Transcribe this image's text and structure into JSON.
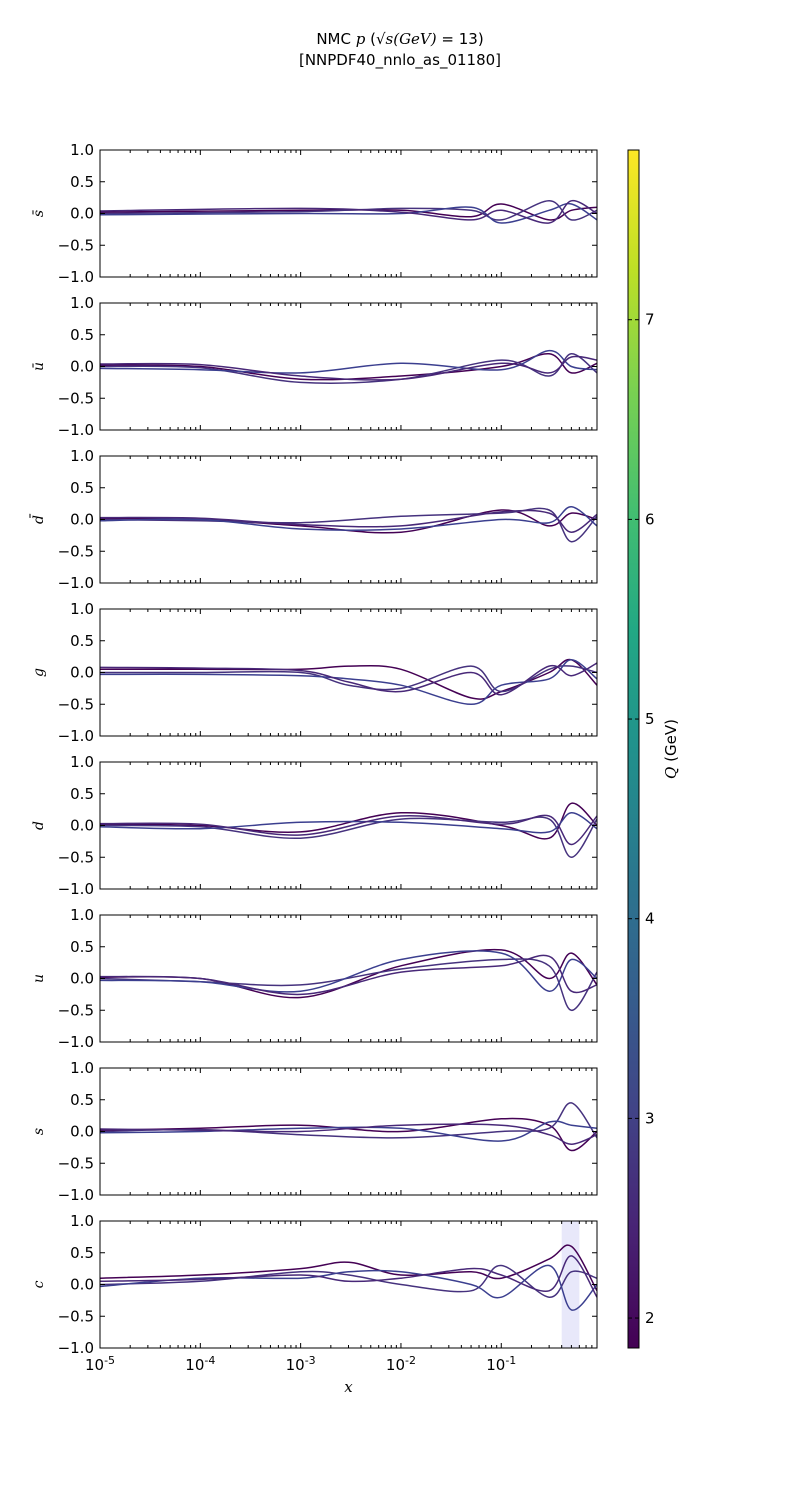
{
  "title": {
    "line1_pre": "NMC ",
    "line1_p": "p",
    "line1_paren": " (",
    "line1_sqrt": "√s",
    "line1_gev": "(GeV)",
    "line1_post": " = 13)",
    "line2": "[NNPDF40_nnlo_as_01180]"
  },
  "chart_data": {
    "type": "line",
    "xscale": "log",
    "xlim": [
      1e-05,
      0.9
    ],
    "ylim": [
      -1.0,
      1.0
    ],
    "xlabel": "x",
    "xticks": [
      "10",
      "10",
      "10",
      "10",
      "10"
    ],
    "xtick_exponents": [
      "-5",
      "-4",
      "-3",
      "-2",
      "-1"
    ],
    "yticks": [
      "1.0",
      "0.5",
      "0.0",
      "−0.5",
      "−1.0"
    ],
    "colorbar": {
      "label": "Q (GeV)",
      "range": [
        1.85,
        7.85
      ],
      "ticks": [
        "2",
        "3",
        "4",
        "5",
        "6",
        "7"
      ],
      "colormap": "viridis"
    },
    "line_colors": [
      "#440154",
      "#46327e",
      "#3b3f8f",
      "#482878",
      "#3e4a89",
      "#4b2a7f",
      "#2f3f8a",
      "#5a2b7a"
    ],
    "panels": [
      {
        "label": "s̄",
        "name": "sbar",
        "curves": [
          {
            "x": [
              1e-05,
              0.001,
              0.01,
              0.05,
              0.1,
              0.3,
              0.5,
              0.9
            ],
            "y": [
              0.02,
              0.05,
              0.05,
              -0.05,
              0.15,
              -0.1,
              0.05,
              0.1
            ]
          },
          {
            "x": [
              1e-05,
              0.001,
              0.01,
              0.05,
              0.1,
              0.3,
              0.5,
              0.9
            ],
            "y": [
              0.0,
              0.03,
              0.08,
              0.05,
              -0.1,
              0.2,
              -0.1,
              0.05
            ]
          },
          {
            "x": [
              1e-05,
              0.001,
              0.01,
              0.05,
              0.1,
              0.3,
              0.5,
              0.9
            ],
            "y": [
              -0.02,
              0.0,
              0.0,
              0.1,
              -0.15,
              0.05,
              0.15,
              -0.1
            ]
          },
          {
            "x": [
              1e-05,
              0.001,
              0.01,
              0.05,
              0.1,
              0.3,
              0.5,
              0.9
            ],
            "y": [
              0.04,
              0.08,
              0.02,
              -0.1,
              0.05,
              -0.15,
              0.2,
              0.0
            ]
          }
        ]
      },
      {
        "label": "ū",
        "name": "ubar",
        "curves": [
          {
            "x": [
              1e-05,
              0.0001,
              0.001,
              0.01,
              0.1,
              0.3,
              0.5,
              0.9
            ],
            "y": [
              0.02,
              0.0,
              -0.2,
              -0.15,
              0.0,
              0.2,
              -0.1,
              0.05
            ]
          },
          {
            "x": [
              1e-05,
              0.0001,
              0.001,
              0.01,
              0.1,
              0.3,
              0.5,
              0.9
            ],
            "y": [
              0.0,
              -0.02,
              -0.25,
              -0.2,
              0.1,
              -0.15,
              0.2,
              -0.1
            ]
          },
          {
            "x": [
              1e-05,
              0.0001,
              0.001,
              0.01,
              0.1,
              0.3,
              0.5,
              0.9
            ],
            "y": [
              -0.03,
              -0.05,
              -0.1,
              0.05,
              -0.05,
              0.25,
              0.0,
              -0.05
            ]
          },
          {
            "x": [
              1e-05,
              0.0001,
              0.001,
              0.01,
              0.1,
              0.3,
              0.5,
              0.9
            ],
            "y": [
              0.04,
              0.03,
              -0.15,
              -0.2,
              0.05,
              -0.1,
              0.15,
              0.1
            ]
          }
        ]
      },
      {
        "label": "d̄",
        "name": "dbar",
        "curves": [
          {
            "x": [
              1e-05,
              0.0001,
              0.001,
              0.01,
              0.1,
              0.3,
              0.5,
              0.9
            ],
            "y": [
              0.02,
              0.0,
              -0.1,
              -0.2,
              0.15,
              -0.1,
              0.1,
              0.0
            ]
          },
          {
            "x": [
              1e-05,
              0.0001,
              0.001,
              0.01,
              0.1,
              0.3,
              0.5,
              0.9
            ],
            "y": [
              0.0,
              -0.02,
              -0.05,
              0.05,
              0.1,
              0.15,
              -0.35,
              0.05
            ]
          },
          {
            "x": [
              1e-05,
              0.0001,
              0.001,
              0.01,
              0.1,
              0.3,
              0.5,
              0.9
            ],
            "y": [
              -0.02,
              0.0,
              -0.15,
              -0.15,
              0.0,
              -0.05,
              0.2,
              -0.1
            ]
          },
          {
            "x": [
              1e-05,
              0.0001,
              0.001,
              0.01,
              0.1,
              0.3,
              0.5,
              0.9
            ],
            "y": [
              0.03,
              0.02,
              -0.08,
              -0.1,
              0.12,
              0.1,
              -0.2,
              0.08
            ]
          }
        ]
      },
      {
        "label": "g",
        "name": "g",
        "curves": [
          {
            "x": [
              1e-05,
              0.0001,
              0.001,
              0.003,
              0.01,
              0.05,
              0.1,
              0.3,
              0.5,
              0.9
            ],
            "y": [
              0.05,
              0.05,
              0.05,
              0.1,
              0.05,
              -0.4,
              -0.3,
              0.0,
              0.2,
              -0.2
            ]
          },
          {
            "x": [
              1e-05,
              0.0001,
              0.001,
              0.003,
              0.01,
              0.05,
              0.1,
              0.3,
              0.5,
              0.9
            ],
            "y": [
              0.0,
              0.0,
              0.0,
              -0.2,
              -0.25,
              0.1,
              -0.3,
              0.05,
              0.1,
              0.0
            ]
          },
          {
            "x": [
              1e-05,
              0.0001,
              0.001,
              0.003,
              0.01,
              0.05,
              0.1,
              0.3,
              0.5,
              0.9
            ],
            "y": [
              -0.03,
              -0.03,
              -0.05,
              -0.1,
              -0.2,
              -0.5,
              -0.2,
              -0.1,
              0.2,
              -0.1
            ]
          },
          {
            "x": [
              1e-05,
              0.0001,
              0.001,
              0.003,
              0.01,
              0.05,
              0.1,
              0.3,
              0.5,
              0.9
            ],
            "y": [
              0.08,
              0.07,
              0.03,
              -0.15,
              -0.3,
              0.0,
              -0.35,
              0.1,
              -0.05,
              0.15
            ]
          }
        ]
      },
      {
        "label": "d",
        "name": "d",
        "curves": [
          {
            "x": [
              1e-05,
              0.0001,
              0.001,
              0.01,
              0.1,
              0.3,
              0.5,
              0.9
            ],
            "y": [
              0.02,
              0.0,
              -0.1,
              0.2,
              0.0,
              -0.2,
              0.35,
              0.0
            ]
          },
          {
            "x": [
              1e-05,
              0.0001,
              0.001,
              0.01,
              0.1,
              0.3,
              0.5,
              0.9
            ],
            "y": [
              0.0,
              -0.02,
              -0.2,
              0.1,
              0.05,
              0.1,
              -0.5,
              0.1
            ]
          },
          {
            "x": [
              1e-05,
              0.0001,
              0.001,
              0.01,
              0.1,
              0.3,
              0.5,
              0.9
            ],
            "y": [
              -0.02,
              -0.05,
              0.05,
              0.05,
              -0.05,
              -0.1,
              0.2,
              -0.05
            ]
          },
          {
            "x": [
              1e-05,
              0.0001,
              0.001,
              0.01,
              0.1,
              0.3,
              0.5,
              0.9
            ],
            "y": [
              0.03,
              0.02,
              -0.15,
              0.15,
              0.02,
              0.15,
              -0.3,
              0.15
            ]
          }
        ]
      },
      {
        "label": "u",
        "name": "u",
        "curves": [
          {
            "x": [
              1e-05,
              0.0001,
              0.001,
              0.01,
              0.1,
              0.3,
              0.5,
              0.9
            ],
            "y": [
              0.02,
              0.0,
              -0.3,
              0.2,
              0.45,
              0.0,
              0.4,
              -0.1
            ]
          },
          {
            "x": [
              1e-05,
              0.0001,
              0.001,
              0.01,
              0.1,
              0.3,
              0.5,
              0.9
            ],
            "y": [
              0.0,
              -0.05,
              -0.1,
              0.15,
              0.3,
              0.2,
              -0.5,
              0.1
            ]
          },
          {
            "x": [
              1e-05,
              0.0001,
              0.001,
              0.01,
              0.1,
              0.3,
              0.5,
              0.9
            ],
            "y": [
              -0.03,
              -0.05,
              -0.2,
              0.3,
              0.4,
              -0.2,
              0.3,
              0.0
            ]
          },
          {
            "x": [
              1e-05,
              0.0001,
              0.001,
              0.01,
              0.1,
              0.3,
              0.5,
              0.9
            ],
            "y": [
              0.03,
              0.0,
              -0.25,
              0.1,
              0.2,
              0.35,
              -0.2,
              -0.1
            ]
          }
        ]
      },
      {
        "label": "s",
        "name": "s",
        "curves": [
          {
            "x": [
              1e-05,
              0.0001,
              0.001,
              0.01,
              0.1,
              0.3,
              0.5,
              0.9
            ],
            "y": [
              0.02,
              0.05,
              0.1,
              0.0,
              0.2,
              0.1,
              -0.3,
              0.0
            ]
          },
          {
            "x": [
              1e-05,
              0.0001,
              0.001,
              0.01,
              0.1,
              0.3,
              0.5,
              0.9
            ],
            "y": [
              0.0,
              0.03,
              -0.05,
              -0.1,
              0.0,
              0.05,
              0.45,
              -0.1
            ]
          },
          {
            "x": [
              1e-05,
              0.0001,
              0.001,
              0.01,
              0.1,
              0.3,
              0.5,
              0.9
            ],
            "y": [
              -0.02,
              0.0,
              0.05,
              0.05,
              -0.15,
              0.15,
              0.1,
              0.05
            ]
          },
          {
            "x": [
              1e-05,
              0.0001,
              0.001,
              0.01,
              0.1,
              0.3,
              0.5,
              0.9
            ],
            "y": [
              0.04,
              0.02,
              0.0,
              0.1,
              0.1,
              -0.05,
              -0.2,
              -0.05
            ]
          }
        ]
      },
      {
        "label": "c",
        "name": "c",
        "curves": [
          {
            "x": [
              1e-05,
              0.0001,
              0.001,
              0.003,
              0.01,
              0.05,
              0.1,
              0.3,
              0.5,
              0.9
            ],
            "y": [
              0.1,
              0.15,
              0.25,
              0.35,
              0.15,
              0.2,
              0.1,
              0.4,
              0.6,
              -0.1
            ]
          },
          {
            "x": [
              1e-05,
              0.0001,
              0.001,
              0.003,
              0.01,
              0.05,
              0.1,
              0.3,
              0.5,
              0.9
            ],
            "y": [
              0.0,
              0.05,
              0.2,
              0.15,
              0.0,
              -0.1,
              0.3,
              -0.2,
              0.2,
              0.1
            ]
          },
          {
            "x": [
              1e-05,
              0.0001,
              0.001,
              0.003,
              0.01,
              0.05,
              0.1,
              0.3,
              0.5,
              0.9
            ],
            "y": [
              -0.03,
              0.1,
              0.1,
              0.2,
              0.2,
              0.0,
              -0.2,
              0.3,
              -0.4,
              0.0
            ]
          },
          {
            "x": [
              1e-05,
              0.0001,
              0.001,
              0.003,
              0.01,
              0.05,
              0.1,
              0.3,
              0.5,
              0.9
            ],
            "y": [
              0.05,
              0.08,
              0.15,
              0.05,
              0.1,
              0.25,
              0.15,
              -0.1,
              0.45,
              -0.2
            ]
          }
        ]
      }
    ]
  }
}
